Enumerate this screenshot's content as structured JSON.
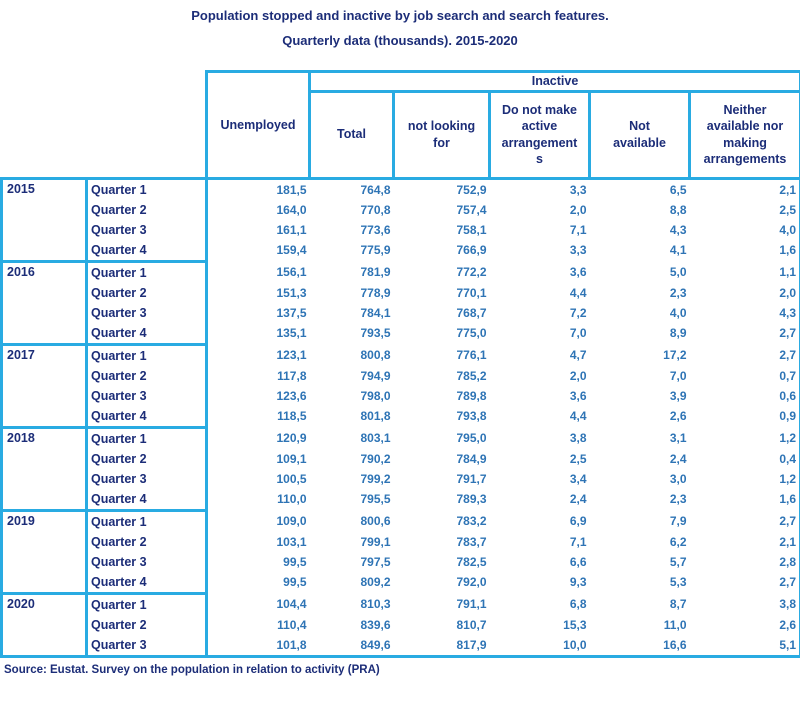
{
  "title": {
    "line1": "Population stopped and inactive by job search and search features.",
    "line2": "Quarterly data (thousands). 2015-2020"
  },
  "colors": {
    "border": "#29abe2",
    "heading_text": "#1c2d78",
    "value_text": "#2e74b5"
  },
  "table": {
    "col_headers": {
      "unemployed": "Unemployed",
      "inactive": "Inactive",
      "sub": [
        "Total",
        "not looking for",
        "Do not make active arrangements",
        "Not available",
        "Neither available nor making arrangements"
      ]
    },
    "groups": [
      {
        "year": "2015",
        "rows": [
          {
            "quarter": "Quarter 1",
            "values": [
              "181,5",
              "764,8",
              "752,9",
              "3,3",
              "6,5",
              "2,1"
            ]
          },
          {
            "quarter": "Quarter 2",
            "values": [
              "164,0",
              "770,8",
              "757,4",
              "2,0",
              "8,8",
              "2,5"
            ]
          },
          {
            "quarter": "Quarter 3",
            "values": [
              "161,1",
              "773,6",
              "758,1",
              "7,1",
              "4,3",
              "4,0"
            ]
          },
          {
            "quarter": "Quarter 4",
            "values": [
              "159,4",
              "775,9",
              "766,9",
              "3,3",
              "4,1",
              "1,6"
            ]
          }
        ]
      },
      {
        "year": "2016",
        "rows": [
          {
            "quarter": "Quarter 1",
            "values": [
              "156,1",
              "781,9",
              "772,2",
              "3,6",
              "5,0",
              "1,1"
            ]
          },
          {
            "quarter": "Quarter 2",
            "values": [
              "151,3",
              "778,9",
              "770,1",
              "4,4",
              "2,3",
              "2,0"
            ]
          },
          {
            "quarter": "Quarter 3",
            "values": [
              "137,5",
              "784,1",
              "768,7",
              "7,2",
              "4,0",
              "4,3"
            ]
          },
          {
            "quarter": "Quarter 4",
            "values": [
              "135,1",
              "793,5",
              "775,0",
              "7,0",
              "8,9",
              "2,7"
            ]
          }
        ]
      },
      {
        "year": "2017",
        "rows": [
          {
            "quarter": "Quarter 1",
            "values": [
              "123,1",
              "800,8",
              "776,1",
              "4,7",
              "17,2",
              "2,7"
            ]
          },
          {
            "quarter": "Quarter 2",
            "values": [
              "117,8",
              "794,9",
              "785,2",
              "2,0",
              "7,0",
              "0,7"
            ]
          },
          {
            "quarter": "Quarter 3",
            "values": [
              "123,6",
              "798,0",
              "789,8",
              "3,6",
              "3,9",
              "0,6"
            ]
          },
          {
            "quarter": "Quarter 4",
            "values": [
              "118,5",
              "801,8",
              "793,8",
              "4,4",
              "2,6",
              "0,9"
            ]
          }
        ]
      },
      {
        "year": "2018",
        "rows": [
          {
            "quarter": "Quarter 1",
            "values": [
              "120,9",
              "803,1",
              "795,0",
              "3,8",
              "3,1",
              "1,2"
            ]
          },
          {
            "quarter": "Quarter 2",
            "values": [
              "109,1",
              "790,2",
              "784,9",
              "2,5",
              "2,4",
              "0,4"
            ]
          },
          {
            "quarter": "Quarter 3",
            "values": [
              "100,5",
              "799,2",
              "791,7",
              "3,4",
              "3,0",
              "1,2"
            ]
          },
          {
            "quarter": "Quarter 4",
            "values": [
              "110,0",
              "795,5",
              "789,3",
              "2,4",
              "2,3",
              "1,6"
            ]
          }
        ]
      },
      {
        "year": "2019",
        "rows": [
          {
            "quarter": "Quarter 1",
            "values": [
              "109,0",
              "800,6",
              "783,2",
              "6,9",
              "7,9",
              "2,7"
            ]
          },
          {
            "quarter": "Quarter 2",
            "values": [
              "103,1",
              "799,1",
              "783,7",
              "7,1",
              "6,2",
              "2,1"
            ]
          },
          {
            "quarter": "Quarter 3",
            "values": [
              "99,5",
              "797,5",
              "782,5",
              "6,6",
              "5,7",
              "2,8"
            ]
          },
          {
            "quarter": "Quarter 4",
            "values": [
              "99,5",
              "809,2",
              "792,0",
              "9,3",
              "5,3",
              "2,7"
            ]
          }
        ]
      },
      {
        "year": "2020",
        "rows": [
          {
            "quarter": "Quarter 1",
            "values": [
              "104,4",
              "810,3",
              "791,1",
              "6,8",
              "8,7",
              "3,8"
            ]
          },
          {
            "quarter": "Quarter 2",
            "values": [
              "110,4",
              "839,6",
              "810,7",
              "15,3",
              "11,0",
              "2,6"
            ]
          },
          {
            "quarter": "Quarter 3",
            "values": [
              "101,8",
              "849,6",
              "817,9",
              "10,0",
              "16,6",
              "5,1"
            ]
          }
        ]
      }
    ]
  },
  "source": "Source: Eustat. Survey on the population in relation to activity (PRA)",
  "chart_data": {
    "type": "table",
    "title": "Population stopped and inactive by job search and search features. Quarterly data (thousands). 2015-2020",
    "columns": [
      "Year",
      "Quarter",
      "Unemployed",
      "Inactive Total",
      "Inactive not looking for",
      "Inactive Do not make active arrangements",
      "Inactive Not available",
      "Inactive Neither available nor making arrangements"
    ],
    "rows": [
      [
        "2015",
        "Quarter 1",
        181.5,
        764.8,
        752.9,
        3.3,
        6.5,
        2.1
      ],
      [
        "2015",
        "Quarter 2",
        164.0,
        770.8,
        757.4,
        2.0,
        8.8,
        2.5
      ],
      [
        "2015",
        "Quarter 3",
        161.1,
        773.6,
        758.1,
        7.1,
        4.3,
        4.0
      ],
      [
        "2015",
        "Quarter 4",
        159.4,
        775.9,
        766.9,
        3.3,
        4.1,
        1.6
      ],
      [
        "2016",
        "Quarter 1",
        156.1,
        781.9,
        772.2,
        3.6,
        5.0,
        1.1
      ],
      [
        "2016",
        "Quarter 2",
        151.3,
        778.9,
        770.1,
        4.4,
        2.3,
        2.0
      ],
      [
        "2016",
        "Quarter 3",
        137.5,
        784.1,
        768.7,
        7.2,
        4.0,
        4.3
      ],
      [
        "2016",
        "Quarter 4",
        135.1,
        793.5,
        775.0,
        7.0,
        8.9,
        2.7
      ],
      [
        "2017",
        "Quarter 1",
        123.1,
        800.8,
        776.1,
        4.7,
        17.2,
        2.7
      ],
      [
        "2017",
        "Quarter 2",
        117.8,
        794.9,
        785.2,
        2.0,
        7.0,
        0.7
      ],
      [
        "2017",
        "Quarter 3",
        123.6,
        798.0,
        789.8,
        3.6,
        3.9,
        0.6
      ],
      [
        "2017",
        "Quarter 4",
        118.5,
        801.8,
        793.8,
        4.4,
        2.6,
        0.9
      ],
      [
        "2018",
        "Quarter 1",
        120.9,
        803.1,
        795.0,
        3.8,
        3.1,
        1.2
      ],
      [
        "2018",
        "Quarter 2",
        109.1,
        790.2,
        784.9,
        2.5,
        2.4,
        0.4
      ],
      [
        "2018",
        "Quarter 3",
        100.5,
        799.2,
        791.7,
        3.4,
        3.0,
        1.2
      ],
      [
        "2018",
        "Quarter 4",
        110.0,
        795.5,
        789.3,
        2.4,
        2.3,
        1.6
      ],
      [
        "2019",
        "Quarter 1",
        109.0,
        800.6,
        783.2,
        6.9,
        7.9,
        2.7
      ],
      [
        "2019",
        "Quarter 2",
        103.1,
        799.1,
        783.7,
        7.1,
        6.2,
        2.1
      ],
      [
        "2019",
        "Quarter 3",
        99.5,
        797.5,
        782.5,
        6.6,
        5.7,
        2.8
      ],
      [
        "2019",
        "Quarter 4",
        99.5,
        809.2,
        792.0,
        9.3,
        5.3,
        2.7
      ],
      [
        "2020",
        "Quarter 1",
        104.4,
        810.3,
        791.1,
        6.8,
        8.7,
        3.8
      ],
      [
        "2020",
        "Quarter 2",
        110.4,
        839.6,
        810.7,
        15.3,
        11.0,
        2.6
      ],
      [
        "2020",
        "Quarter 3",
        101.8,
        849.6,
        817.9,
        10.0,
        16.6,
        5.1
      ]
    ]
  }
}
